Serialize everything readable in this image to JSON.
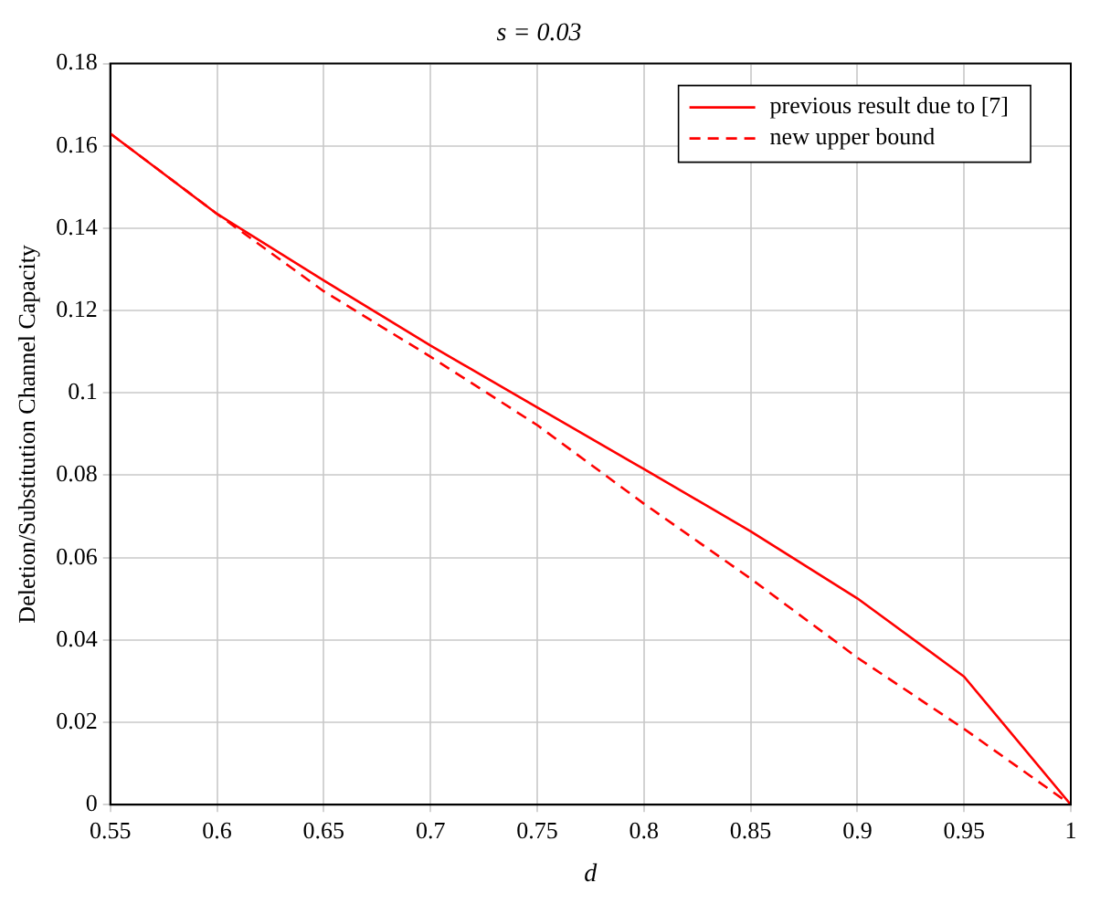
{
  "chart_data": {
    "type": "line",
    "title": "s = 0.03",
    "xlabel": "d",
    "ylabel": "Deletion/Substitution Channel Capacity",
    "x": [
      0.55,
      0.6,
      0.65,
      0.7,
      0.75,
      0.8,
      0.85,
      0.9,
      0.95,
      1
    ],
    "series": [
      {
        "name": "previous result due to [7]",
        "color": "#ff0000",
        "line_style": "solid",
        "values": [
          0.163,
          0.1435,
          0.1273,
          0.1115,
          0.0965,
          0.0815,
          0.0664,
          0.0501,
          0.0311,
          0
        ]
      },
      {
        "name": "new upper bound",
        "color": "#ff0000",
        "line_style": "dashed",
        "values": [
          0.163,
          0.1435,
          0.1247,
          0.1088,
          0.0922,
          0.0731,
          0.0549,
          0.0357,
          0.0184,
          0
        ]
      }
    ],
    "xlim": [
      0.55,
      1
    ],
    "xticks": [
      0.55,
      0.6,
      0.65,
      0.7,
      0.75,
      0.8,
      0.85,
      0.9,
      0.95,
      1
    ],
    "ylim": [
      0,
      0.18
    ],
    "yticks": [
      0,
      0.02,
      0.04,
      0.06,
      0.08,
      0.1,
      0.12,
      0.14,
      0.16,
      0.18
    ],
    "grid": true,
    "legend": "top right",
    "marker": "none"
  }
}
